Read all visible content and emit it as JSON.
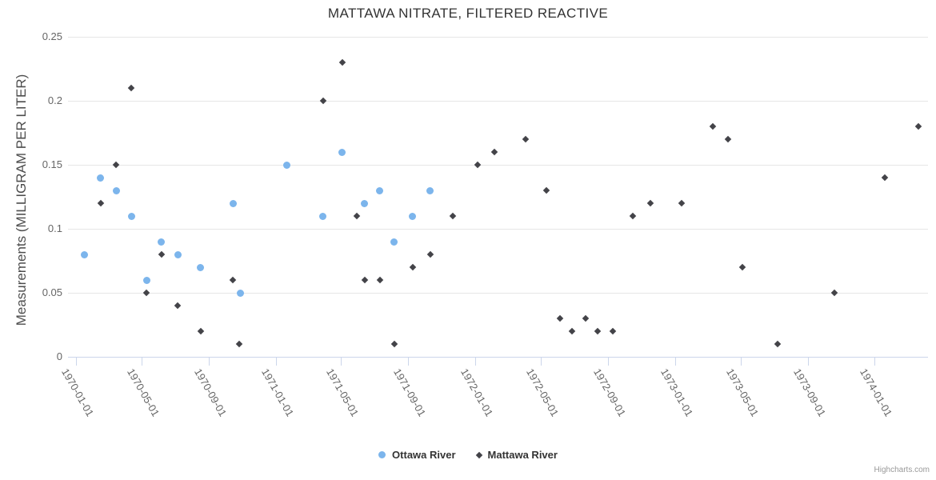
{
  "chart_data": {
    "type": "scatter",
    "title": "MATTAWA NITRATE, FILTERED REACTIVE",
    "ylabel": "Measurements (MILLIGRAM PER LITER)",
    "xlabel": "",
    "ylim": [
      0,
      0.25
    ],
    "yticks": [
      {
        "value": 0,
        "label": "0"
      },
      {
        "value": 0.05,
        "label": "0.05"
      },
      {
        "value": 0.1,
        "label": "0.1"
      },
      {
        "value": 0.15,
        "label": "0.15"
      },
      {
        "value": 0.2,
        "label": "0.2"
      },
      {
        "value": 0.25,
        "label": "0.25"
      }
    ],
    "xticks": [
      "1970-01-01",
      "1970-05-01",
      "1970-09-01",
      "1971-01-01",
      "1971-05-01",
      "1971-09-01",
      "1972-01-01",
      "1972-05-01",
      "1972-09-01",
      "1973-01-01",
      "1973-05-01",
      "1973-09-01",
      "1974-01-01"
    ],
    "x_range": [
      "1969-12-17",
      "1974-04-09"
    ],
    "grid": "horizontal-only",
    "legend_position": "bottom-center",
    "colors": {
      "grid": "#e6e6e6",
      "axis_line": "#ccd6eb",
      "title_text": "#333333",
      "axis_label_text": "#666666",
      "credits_text": "#999999"
    },
    "series": [
      {
        "name": "Ottawa River",
        "color": "#7cb5ec",
        "marker": "circle",
        "points": [
          [
            "1970-01-16",
            0.08
          ],
          [
            "1970-02-15",
            0.14
          ],
          [
            "1970-03-15",
            0.13
          ],
          [
            "1970-04-12",
            0.11
          ],
          [
            "1970-05-10",
            0.06
          ],
          [
            "1970-06-06",
            0.09
          ],
          [
            "1970-07-06",
            0.08
          ],
          [
            "1970-08-17",
            0.07
          ],
          [
            "1970-10-15",
            0.12
          ],
          [
            "1970-10-28",
            0.05
          ],
          [
            "1971-01-21",
            0.15
          ],
          [
            "1971-03-29",
            0.11
          ],
          [
            "1971-05-03",
            0.16
          ],
          [
            "1971-06-13",
            0.12
          ],
          [
            "1971-07-11",
            0.13
          ],
          [
            "1971-08-06",
            0.09
          ],
          [
            "1971-09-09",
            0.11
          ],
          [
            "1971-10-11",
            0.13
          ]
        ]
      },
      {
        "name": "Mattawa River",
        "color": "#434348",
        "marker": "diamond",
        "points": [
          [
            "1970-02-15",
            0.12
          ],
          [
            "1970-03-15",
            0.15
          ],
          [
            "1970-04-12",
            0.21
          ],
          [
            "1970-05-10",
            0.05
          ],
          [
            "1970-06-06",
            0.08
          ],
          [
            "1970-07-06",
            0.04
          ],
          [
            "1970-08-17",
            0.02
          ],
          [
            "1970-10-15",
            0.06
          ],
          [
            "1970-10-26",
            0.01
          ],
          [
            "1971-03-29",
            0.2
          ],
          [
            "1971-05-03",
            0.23
          ],
          [
            "1971-05-29",
            0.11
          ],
          [
            "1971-06-13",
            0.06
          ],
          [
            "1971-07-11",
            0.06
          ],
          [
            "1971-08-06",
            0.01
          ],
          [
            "1971-09-09",
            0.07
          ],
          [
            "1971-10-11",
            0.08
          ],
          [
            "1971-11-21",
            0.11
          ],
          [
            "1972-01-06",
            0.15
          ],
          [
            "1972-02-05",
            0.16
          ],
          [
            "1972-04-02",
            0.17
          ],
          [
            "1972-05-11",
            0.13
          ],
          [
            "1972-06-04",
            0.03
          ],
          [
            "1972-06-27",
            0.02
          ],
          [
            "1972-07-22",
            0.03
          ],
          [
            "1972-08-13",
            0.02
          ],
          [
            "1972-09-09",
            0.02
          ],
          [
            "1972-10-15",
            0.11
          ],
          [
            "1972-11-17",
            0.12
          ],
          [
            "1973-01-13",
            0.12
          ],
          [
            "1973-03-11",
            0.18
          ],
          [
            "1973-04-08",
            0.17
          ],
          [
            "1973-05-04",
            0.07
          ],
          [
            "1973-07-08",
            0.01
          ],
          [
            "1973-10-19",
            0.05
          ],
          [
            "1974-01-20",
            0.14
          ],
          [
            "1974-03-22",
            0.18
          ]
        ]
      }
    ],
    "credits": "Highcharts.com"
  }
}
